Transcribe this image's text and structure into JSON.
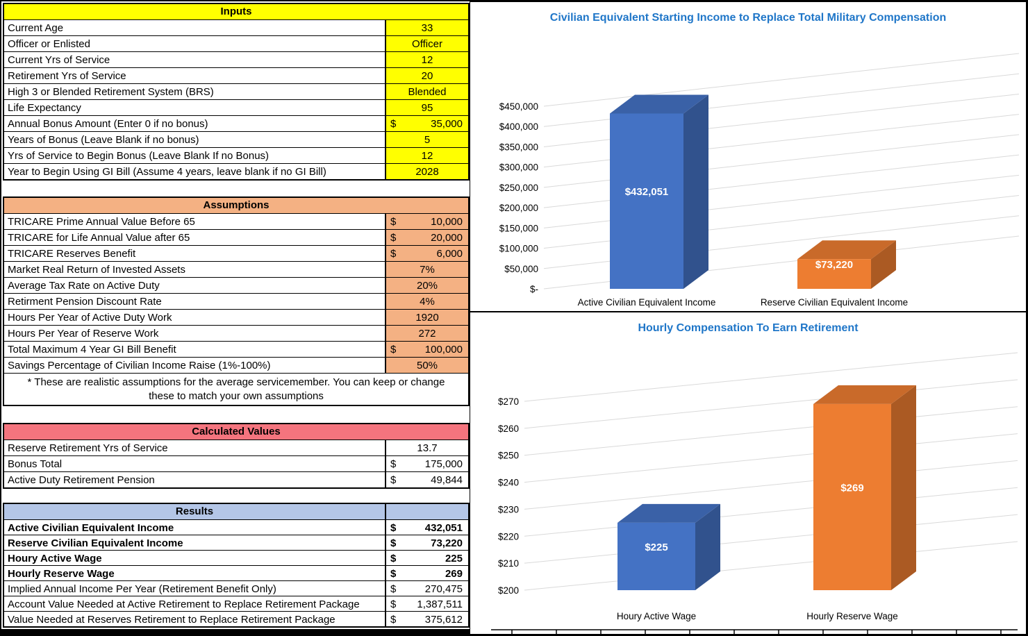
{
  "theme": {
    "input_fill": "#FFFF00",
    "assumption_fill": "#F4B183",
    "calculated_fill": "#F4747E",
    "results_fill": "#B4C6E7",
    "chart_title_color": "#1F76C8"
  },
  "inputs": {
    "title": "Inputs",
    "rows": [
      {
        "label": "Current Age",
        "value": "33"
      },
      {
        "label": "Officer or Enlisted",
        "value": "Officer"
      },
      {
        "label": "Current Yrs of Service",
        "value": "12"
      },
      {
        "label": "Retirement Yrs of Service",
        "value": "20"
      },
      {
        "label": "High 3 or Blended Retirement System (BRS)",
        "value": "Blended"
      },
      {
        "label": "Life Expectancy",
        "value": "95"
      },
      {
        "label": "Annual Bonus Amount (Enter 0 if no bonus)",
        "prefix": "$",
        "value": "35,000"
      },
      {
        "label": "Years of Bonus (Leave Blank if no bonus)",
        "value": "5"
      },
      {
        "label": "Yrs of Service to Begin Bonus (Leave Blank If no Bonus)",
        "value": "12"
      },
      {
        "label": "Year to Begin Using GI Bill (Assume 4 years, leave blank if no GI Bill)",
        "value": "2028"
      }
    ]
  },
  "assumptions": {
    "title": "Assumptions",
    "rows": [
      {
        "label": "TRICARE Prime Annual Value Before 65",
        "prefix": "$",
        "value": "10,000"
      },
      {
        "label": "TRICARE for Life Annual Value after 65",
        "prefix": "$",
        "value": "20,000"
      },
      {
        "label": "TRICARE Reserves Benefit",
        "prefix": "$",
        "value": "6,000"
      },
      {
        "label": "Market Real Return of Invested Assets",
        "value": "7%"
      },
      {
        "label": "Average Tax Rate on Active Duty",
        "value": "20%"
      },
      {
        "label": "Retirment Pension Discount Rate",
        "value": "4%"
      },
      {
        "label": "Hours Per Year of Active Duty Work",
        "value": "1920"
      },
      {
        "label": "Hours Per Year of Reserve Work",
        "value": "272"
      },
      {
        "label": "Total Maximum 4 Year GI Bill Benefit",
        "prefix": "$",
        "value": "100,000"
      },
      {
        "label": "Savings Percentage of Civilian Income Raise (1%-100%)",
        "value": "50%"
      }
    ],
    "note_line1": "* These are realistic assumptions for the average servicemember. You can keep or change",
    "note_line2": "these to match your own assumptions"
  },
  "calculated": {
    "title": "Calculated Values",
    "rows": [
      {
        "label": "Reserve Retirement Yrs of Service",
        "value": "13.7"
      },
      {
        "label": "Bonus Total",
        "prefix": "$",
        "value": "175,000"
      },
      {
        "label": "Active Duty Retirement Pension",
        "prefix": "$",
        "value": "49,844"
      }
    ]
  },
  "results": {
    "title": "Results",
    "rows": [
      {
        "label": "Active Civilian Equivalent Income",
        "prefix": "$",
        "value": "432,051",
        "bold": true
      },
      {
        "label": "Reserve Civilian Equivalent Income",
        "prefix": "$",
        "value": "73,220",
        "bold": true
      },
      {
        "label": "Houry Active Wage",
        "prefix": "$",
        "value": "225",
        "bold": true
      },
      {
        "label": "Hourly Reserve Wage",
        "prefix": "$",
        "value": "269",
        "bold": true
      },
      {
        "label": "Implied Annual Income Per Year (Retirement Benefit Only)",
        "prefix": "$",
        "value": "270,475"
      },
      {
        "label": "Account Value Needed at Active Retirement to Replace Retirement Package",
        "prefix": "$",
        "value": "1,387,511"
      },
      {
        "label": "Value Needed at Reserves Retirement to Replace Retirement Package",
        "prefix": "$",
        "value": "375,612"
      }
    ]
  },
  "chart_data": [
    {
      "type": "bar",
      "style": "3d-column",
      "title": "Civilian Equivalent Starting Income to Replace Total Military Compensation",
      "categories": [
        "Active Civilian Equivalent Income",
        "Reserve Civilian Equivalent Income"
      ],
      "values": [
        432051,
        73220
      ],
      "value_labels": [
        "$432,051",
        "$73,220"
      ],
      "ytick_labels": [
        "$450,000",
        "$400,000",
        "$350,000",
        "$300,000",
        "$250,000",
        "$200,000",
        "$150,000",
        "$100,000",
        "$50,000",
        "$-"
      ],
      "ylim": [
        0,
        450000
      ],
      "ystep": 50000,
      "bar_colors": [
        "#4472C4",
        "#ED7D31"
      ],
      "legend": "none",
      "grid": true,
      "xlabel": "",
      "ylabel": ""
    },
    {
      "type": "bar",
      "style": "3d-column",
      "title": "Hourly Compensation To Earn Retirement",
      "categories": [
        "Houry Active Wage",
        "Hourly Reserve Wage"
      ],
      "values": [
        225,
        269
      ],
      "value_labels": [
        "$225",
        "$269"
      ],
      "ytick_labels": [
        "$270",
        "$260",
        "$250",
        "$240",
        "$230",
        "$220",
        "$210",
        "$200"
      ],
      "ylim": [
        200,
        270
      ],
      "ystep": 10,
      "bar_colors": [
        "#4472C4",
        "#ED7D31"
      ],
      "legend": "none",
      "grid": true,
      "xlabel": "",
      "ylabel": ""
    }
  ]
}
